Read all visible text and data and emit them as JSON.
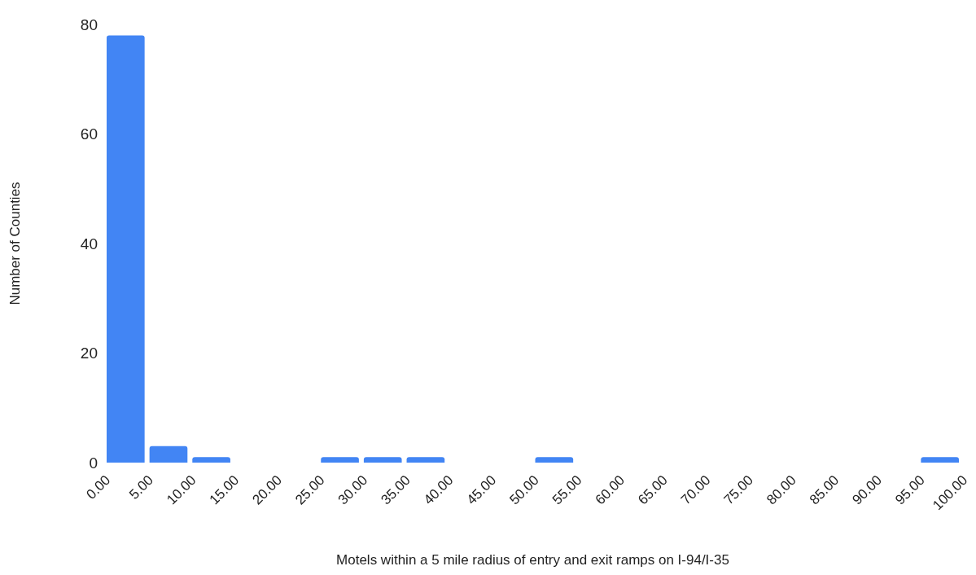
{
  "chart_data": {
    "type": "histogram",
    "xlabel": "Motels within a 5 mile radius of entry and exit ramps on I-94/I-35",
    "ylabel": "Number of Counties",
    "bins": [
      0,
      5,
      10,
      15,
      20,
      25,
      30,
      35,
      40,
      45,
      50,
      55,
      60,
      65,
      70,
      75,
      80,
      85,
      90,
      95,
      100
    ],
    "values": [
      78,
      3,
      1,
      0,
      0,
      1,
      1,
      1,
      0,
      0,
      1,
      0,
      0,
      0,
      0,
      0,
      0,
      0,
      0,
      1
    ],
    "color": "#4285f4",
    "xlim": [
      0,
      100
    ],
    "xticks": [
      {
        "value": 0,
        "label": "0.00"
      },
      {
        "value": 5,
        "label": "5.00"
      },
      {
        "value": 10,
        "label": "10.00"
      },
      {
        "value": 15,
        "label": "15.00"
      },
      {
        "value": 20,
        "label": "20.00"
      },
      {
        "value": 25,
        "label": "25.00"
      },
      {
        "value": 30,
        "label": "30.00"
      },
      {
        "value": 35,
        "label": "35.00"
      },
      {
        "value": 40,
        "label": "40.00"
      },
      {
        "value": 45,
        "label": "45.00"
      },
      {
        "value": 50,
        "label": "50.00"
      },
      {
        "value": 55,
        "label": "55.00"
      },
      {
        "value": 60,
        "label": "60.00"
      },
      {
        "value": 65,
        "label": "65.00"
      },
      {
        "value": 70,
        "label": "70.00"
      },
      {
        "value": 75,
        "label": "75.00"
      },
      {
        "value": 80,
        "label": "80.00"
      },
      {
        "value": 85,
        "label": "85.00"
      },
      {
        "value": 90,
        "label": "90.00"
      },
      {
        "value": 95,
        "label": "95.00"
      },
      {
        "value": 100,
        "label": "100.00"
      }
    ],
    "ylim": [
      0,
      80
    ],
    "yticks": [
      0,
      20,
      40,
      60,
      80
    ],
    "grid": false
  }
}
